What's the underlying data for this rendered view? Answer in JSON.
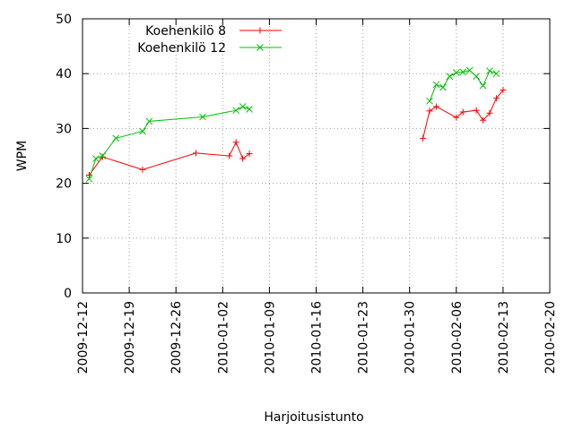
{
  "chart_data": {
    "type": "line",
    "title": "",
    "xlabel": "Harjoitusistunto",
    "ylabel": "WPM",
    "x_type": "date",
    "xlim": [
      "2009-12-12",
      "2010-02-20"
    ],
    "ylim": [
      0,
      50
    ],
    "x_ticks": [
      "2009-12-12",
      "2009-12-19",
      "2009-12-26",
      "2010-01-02",
      "2010-01-09",
      "2010-01-16",
      "2010-01-23",
      "2010-01-30",
      "2010-02-06",
      "2010-02-13",
      "2010-02-20"
    ],
    "y_ticks": [
      0,
      10,
      20,
      30,
      40,
      50
    ],
    "grid": true,
    "legend_position": "top-left",
    "series": [
      {
        "name": "Koehenkilö 8",
        "color": "#ff0000",
        "marker": "plus",
        "segments": [
          [
            {
              "x": "2009-12-13",
              "y": 21.5
            },
            {
              "x": "2009-12-15",
              "y": 24.8
            },
            {
              "x": "2009-12-21",
              "y": 22.5
            },
            {
              "x": "2009-12-29",
              "y": 25.5
            },
            {
              "x": "2010-01-03",
              "y": 25.0
            },
            {
              "x": "2010-01-04",
              "y": 27.5
            },
            {
              "x": "2010-01-05",
              "y": 24.5
            },
            {
              "x": "2010-01-06",
              "y": 25.4
            }
          ],
          [
            {
              "x": "2010-02-01",
              "y": 28.2
            },
            {
              "x": "2010-02-02",
              "y": 33.2
            },
            {
              "x": "2010-02-03",
              "y": 34.0
            },
            {
              "x": "2010-02-06",
              "y": 32.0
            },
            {
              "x": "2010-02-07",
              "y": 33.0
            },
            {
              "x": "2010-02-09",
              "y": 33.3
            },
            {
              "x": "2010-02-10",
              "y": 31.5
            },
            {
              "x": "2010-02-11",
              "y": 32.8
            },
            {
              "x": "2010-02-12",
              "y": 35.5
            },
            {
              "x": "2010-02-13",
              "y": 37.0
            }
          ]
        ]
      },
      {
        "name": "Koehenkilö 12",
        "color": "#00c000",
        "marker": "cross",
        "segments": [
          [
            {
              "x": "2009-12-13",
              "y": 20.8
            },
            {
              "x": "2009-12-14",
              "y": 24.5
            },
            {
              "x": "2009-12-15",
              "y": 25.0
            },
            {
              "x": "2009-12-17",
              "y": 28.2
            },
            {
              "x": "2009-12-21",
              "y": 29.5
            },
            {
              "x": "2009-12-22",
              "y": 31.3
            },
            {
              "x": "2009-12-30",
              "y": 32.1
            },
            {
              "x": "2010-01-04",
              "y": 33.3
            },
            {
              "x": "2010-01-05",
              "y": 34.0
            },
            {
              "x": "2010-01-06",
              "y": 33.5
            }
          ],
          [
            {
              "x": "2010-02-02",
              "y": 35.0
            },
            {
              "x": "2010-02-03",
              "y": 38.0
            },
            {
              "x": "2010-02-04",
              "y": 37.5
            },
            {
              "x": "2010-02-05",
              "y": 39.5
            },
            {
              "x": "2010-02-06",
              "y": 40.2
            },
            {
              "x": "2010-02-07",
              "y": 40.3
            },
            {
              "x": "2010-02-08",
              "y": 40.6
            },
            {
              "x": "2010-02-09",
              "y": 39.5
            },
            {
              "x": "2010-02-10",
              "y": 37.8
            },
            {
              "x": "2010-02-11",
              "y": 40.5
            },
            {
              "x": "2010-02-12",
              "y": 40.0
            }
          ]
        ]
      }
    ]
  }
}
